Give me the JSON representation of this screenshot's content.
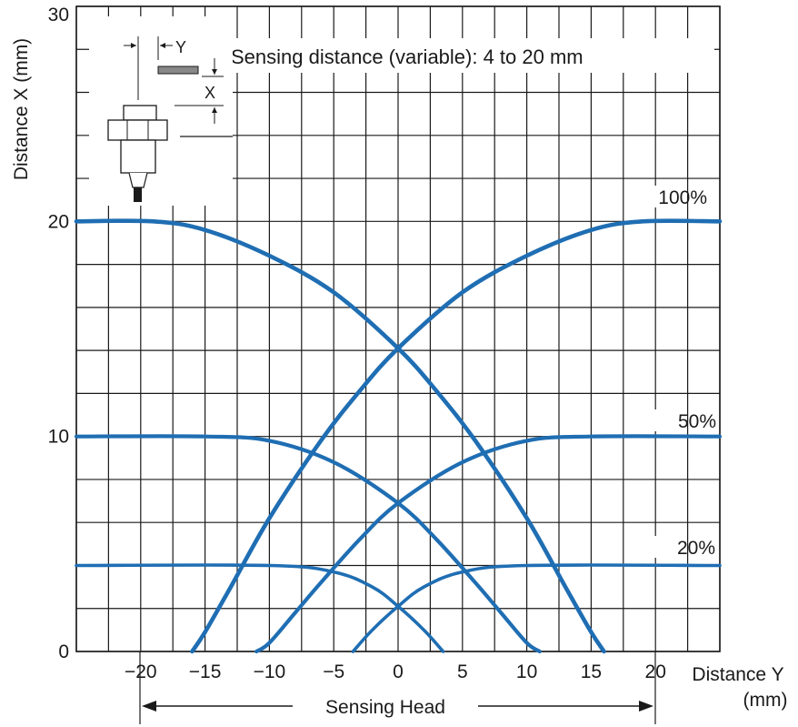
{
  "chart_data": {
    "type": "line",
    "title": "",
    "note": "Sensing distance (variable):  4 to 20 mm",
    "xlabel": "Distance Y",
    "xlabel_unit": "(mm)",
    "ylabel": "Distance X (mm)",
    "bottom_annotation": "Sensing Head",
    "xlim": [
      -25,
      25
    ],
    "ylim": [
      0,
      30
    ],
    "x_ticks": [
      -20,
      -15,
      -10,
      -5,
      0,
      5,
      10,
      15,
      20
    ],
    "x_tick_labels": [
      "−20",
      "−15",
      "−10",
      "−5",
      "0",
      "5",
      "10",
      "15",
      "20"
    ],
    "y_ticks": [
      0,
      10,
      20,
      30
    ],
    "y_tick_labels": [
      "0",
      "10",
      "20",
      "30"
    ],
    "grid": true,
    "line_color": "#1f6eb3",
    "series": [
      {
        "name": "100%",
        "curves": [
          {
            "x": [
              -25,
              -19,
              -15,
              -10,
              -5,
              0,
              3,
              6,
              10,
              13,
              15,
              16
            ],
            "y": [
              20,
              20,
              19.6,
              18.4,
              16.7,
              14.1,
              12.1,
              9.8,
              6.2,
              3.0,
              0.9,
              0
            ]
          },
          {
            "x": [
              -16,
              -15,
              -13,
              -10,
              -6,
              -3,
              0,
              5,
              10,
              15,
              19,
              25
            ],
            "y": [
              0,
              0.9,
              3.0,
              6.2,
              9.8,
              12.1,
              14.1,
              16.7,
              18.4,
              19.6,
              20,
              20
            ]
          }
        ]
      },
      {
        "name": "50%",
        "curves": [
          {
            "x": [
              -25,
              -15,
              -10,
              -5,
              0,
              3,
              6,
              8,
              10,
              11
            ],
            "y": [
              10,
              10,
              9.8,
              8.8,
              6.9,
              5.2,
              3.2,
              1.8,
              0.4,
              0
            ]
          },
          {
            "x": [
              -11,
              -10,
              -8,
              -6,
              -3,
              0,
              5,
              10,
              15,
              25
            ],
            "y": [
              0,
              0.4,
              1.8,
              3.2,
              5.2,
              6.9,
              8.8,
              9.8,
              10,
              10
            ]
          }
        ]
      },
      {
        "name": "20%",
        "curves": [
          {
            "x": [
              -25,
              -10,
              -5,
              -2,
              0,
              2,
              3.5
            ],
            "y": [
              4,
              4,
              3.7,
              3.0,
              2.1,
              1.0,
              0
            ]
          },
          {
            "x": [
              -3.5,
              -2,
              0,
              2,
              5,
              10,
              25
            ],
            "y": [
              0,
              1.0,
              2.1,
              3.0,
              3.7,
              4,
              4
            ]
          }
        ]
      }
    ]
  }
}
